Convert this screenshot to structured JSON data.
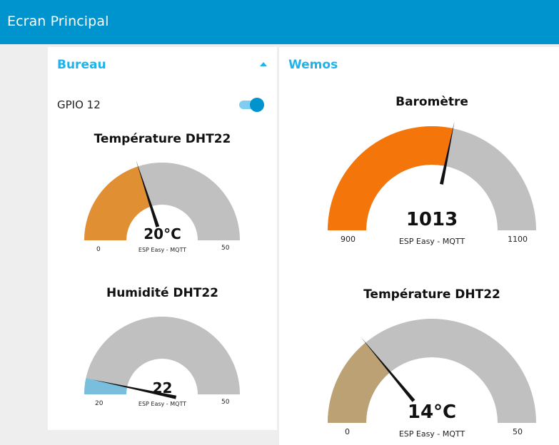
{
  "header": {
    "title": "Ecran Principal"
  },
  "groups": {
    "bureau": {
      "title": "Bureau",
      "switch": {
        "label": "GPIO 12",
        "on": true
      },
      "temperature": {
        "title": "Température DHT22",
        "value_text": "20°C",
        "value": 20,
        "min": 0,
        "max": 50,
        "min_label": "0",
        "max_label": "50",
        "label": "ESP Easy - MQTT",
        "color": "#e09033"
      },
      "humidity": {
        "title": "Humidité DHT22",
        "value_text": "22",
        "value": 22,
        "min": 20,
        "max": 50,
        "min_label": "20",
        "max_label": "50",
        "label": "ESP Easy - MQTT",
        "color": "#79bfdd"
      }
    },
    "wemos": {
      "title": "Wemos",
      "barometer": {
        "title": "Baromètre",
        "value_text": "1013",
        "value": 1013,
        "min": 900,
        "max": 1100,
        "min_label": "900",
        "max_label": "1100",
        "label": "ESP Easy - MQTT",
        "color": "#f4760b"
      },
      "temperature": {
        "title": "Température DHT22",
        "value_text": "14°C",
        "value": 14,
        "min": 0,
        "max": 50,
        "min_label": "0",
        "max_label": "50",
        "label": "ESP Easy - MQTT",
        "color": "#bca175"
      }
    }
  },
  "colors": {
    "accent": "#0094ce",
    "group_title": "#1fb3ea",
    "gauge_track": "#c0c0c0",
    "needle": "#111111"
  }
}
